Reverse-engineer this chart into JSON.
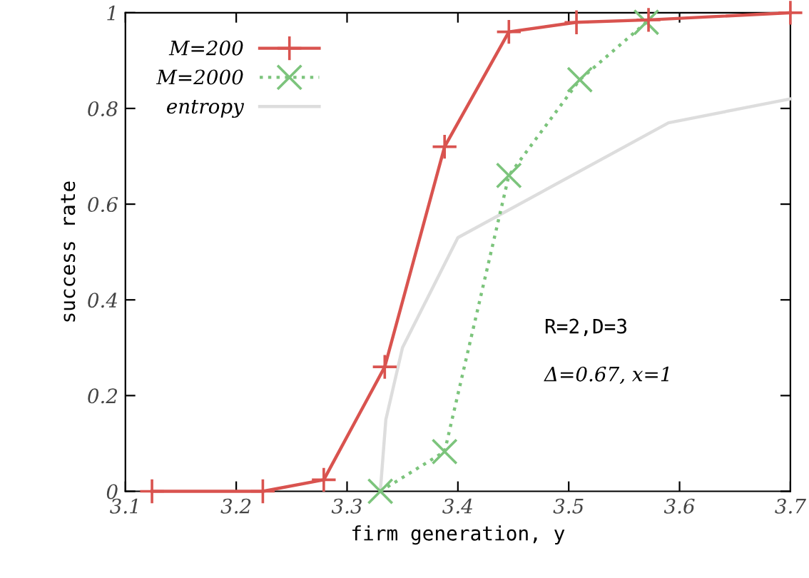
{
  "chart_data": {
    "type": "line",
    "xlabel": "firm generation, y",
    "ylabel": "success rate",
    "xlim": [
      3.1,
      3.7
    ],
    "ylim": [
      0,
      1
    ],
    "xticks": [
      3.1,
      3.2,
      3.3,
      3.4,
      3.5,
      3.6,
      3.7
    ],
    "yticks": [
      0,
      0.2,
      0.4,
      0.6,
      0.8,
      {
        "value": 1,
        "label": "1"
      }
    ],
    "legend": "top left",
    "grid": false,
    "series": [
      {
        "name": "M=200",
        "color": "#d9534f",
        "marker": "plus",
        "line_style": "solid",
        "x": [
          3.124,
          3.224,
          3.279,
          3.334,
          3.388,
          3.446,
          3.507,
          3.572,
          3.7
        ],
        "values": [
          0,
          0,
          0.024,
          0.26,
          0.72,
          0.96,
          0.98,
          0.985,
          1
        ]
      },
      {
        "name": "M=2000",
        "color": "#7cc47c",
        "marker": "cross",
        "line_style": "dotted",
        "x": [
          3.33,
          3.388,
          3.446,
          3.51,
          3.57
        ],
        "values": [
          0,
          0.083,
          0.66,
          0.86,
          0.98
        ]
      },
      {
        "name": "entropy",
        "color": "#dddddd",
        "marker": "none",
        "line_style": "solid",
        "x": [
          3.33,
          3.335,
          3.35,
          3.4,
          3.59,
          3.7
        ],
        "values": [
          0,
          0.15,
          0.3,
          0.53,
          0.77,
          0.82
        ]
      }
    ],
    "annotations": [
      "R=2,D=3",
      "Δ=0.67, x=1"
    ]
  }
}
